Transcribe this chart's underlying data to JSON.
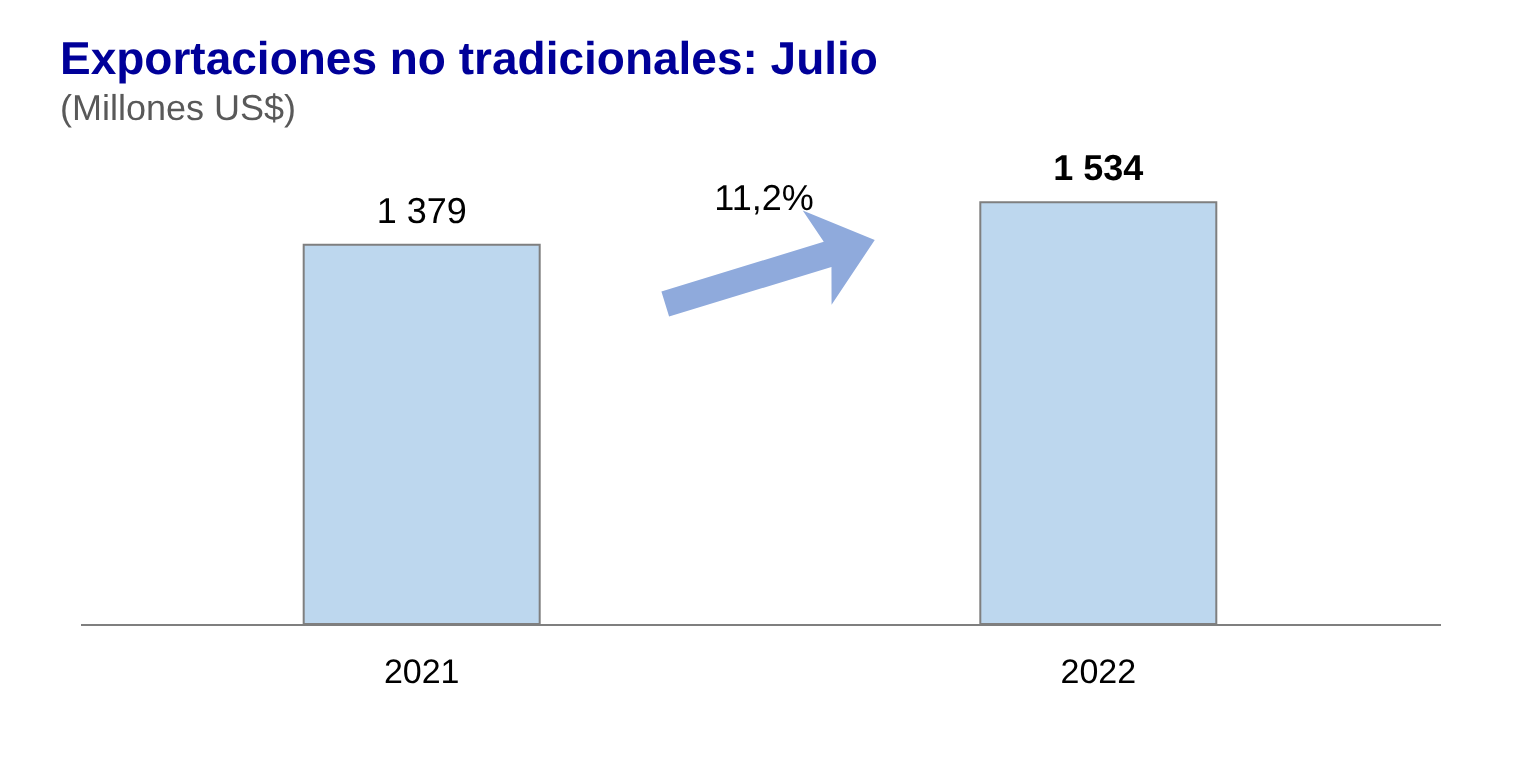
{
  "chart_data": {
    "type": "bar",
    "title": "Exportaciones no tradicionales: Julio",
    "subtitle": "(Millones US$)",
    "categories": [
      "2021",
      "2022"
    ],
    "values": [
      1379,
      1534
    ],
    "color": "#bdd7ee",
    "data_labels": true,
    "annotations": [
      "11,2%"
    ]
  }
}
